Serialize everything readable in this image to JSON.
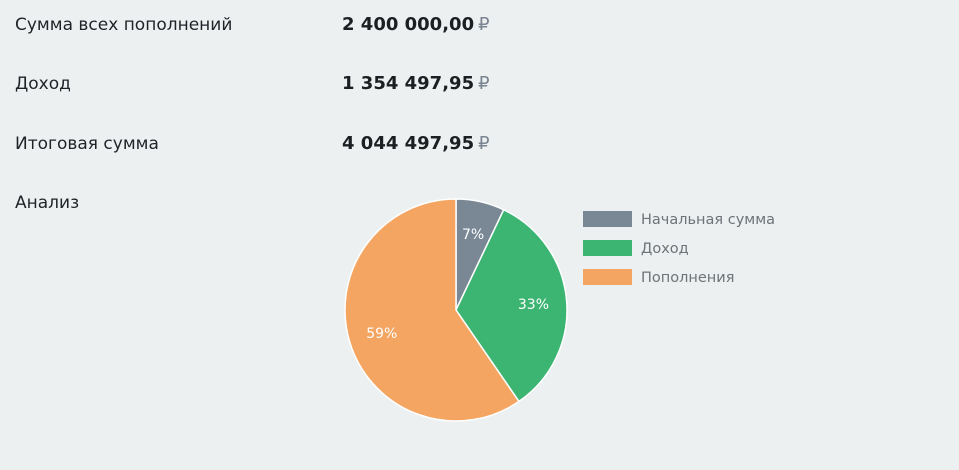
{
  "summary": {
    "rows": [
      {
        "label": "Сумма всех пополнений",
        "value": "2 400 000,00",
        "currency": "₽"
      },
      {
        "label": "Доход",
        "value": "1 354 497,95",
        "currency": "₽"
      },
      {
        "label": "Итоговая сумма",
        "value": "4 044 497,95",
        "currency": "₽"
      }
    ]
  },
  "analysis": {
    "label": "Анализ"
  },
  "chart_data": {
    "type": "pie",
    "title": "",
    "legend_position": "right",
    "slices": [
      {
        "name": "Начальная сумма",
        "value": 7,
        "label": "7%",
        "color": "#7a8896"
      },
      {
        "name": "Доход",
        "value": 33,
        "label": "33%",
        "color": "#3cb572"
      },
      {
        "name": "Пополнения",
        "value": 59,
        "label": "59%",
        "color": "#f4a562"
      }
    ]
  }
}
